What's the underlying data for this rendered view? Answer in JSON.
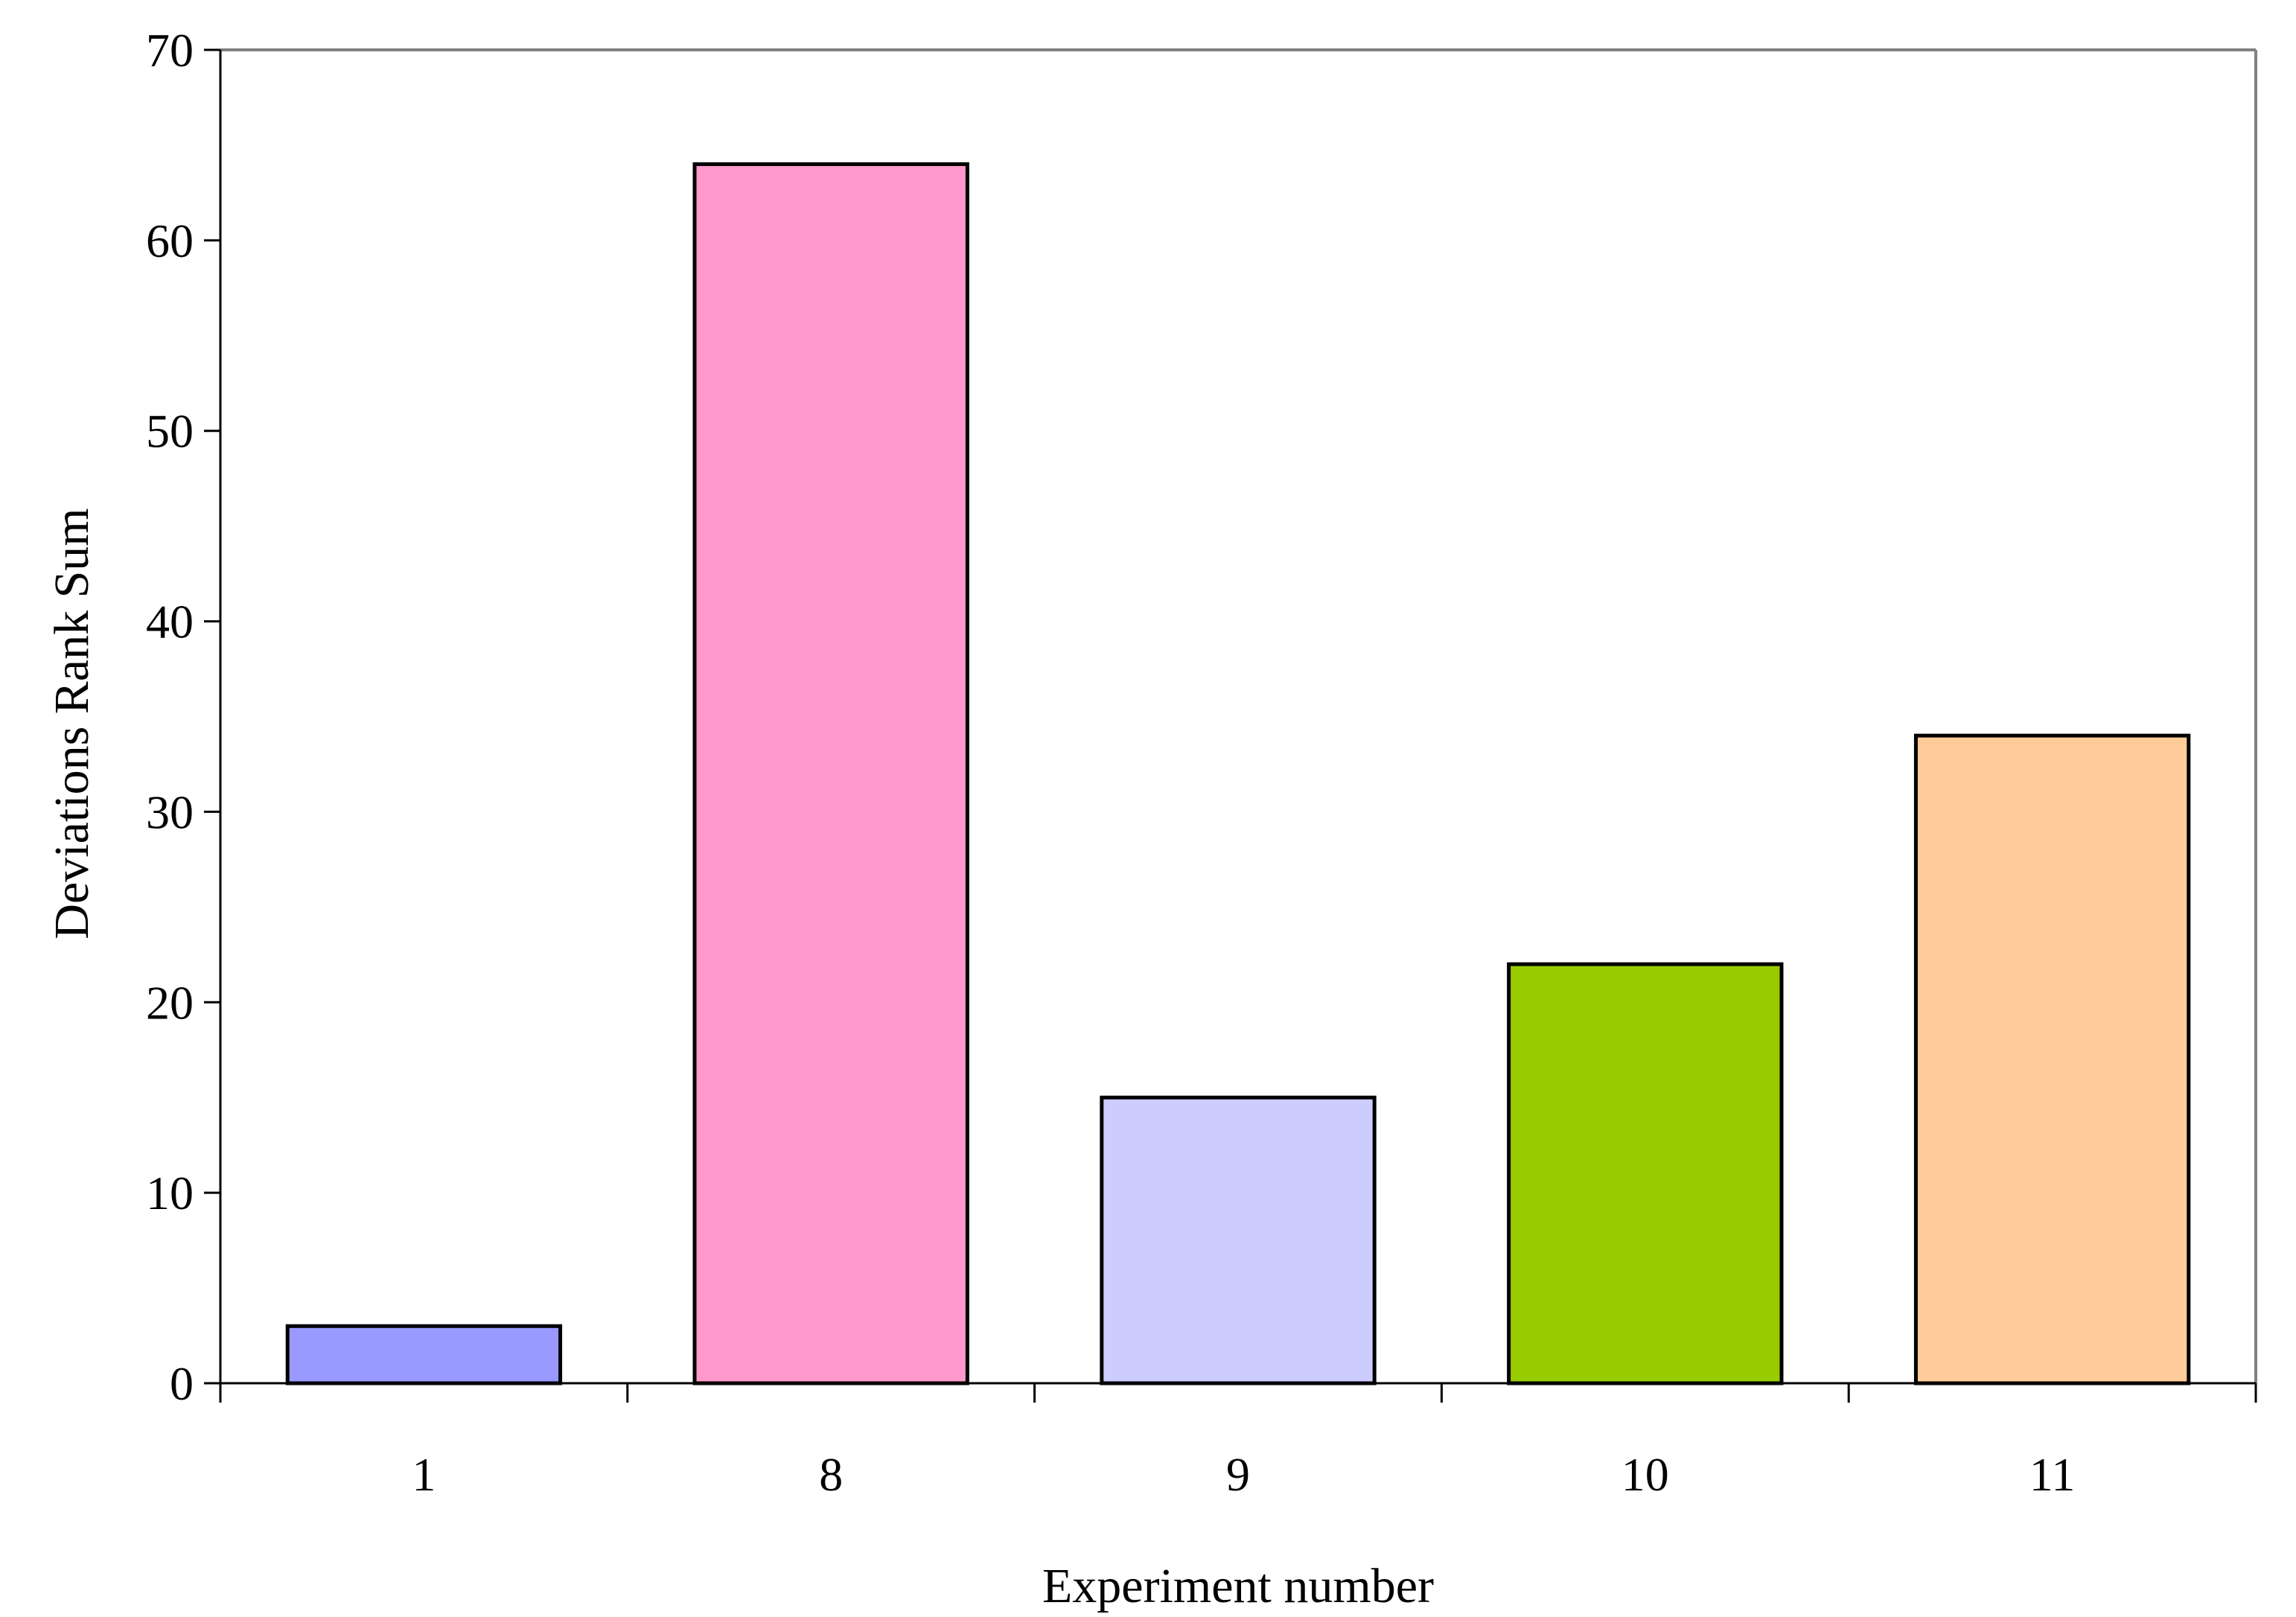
{
  "chart_data": {
    "type": "bar",
    "title": "",
    "xlabel": "Experiment number",
    "ylabel": "Deviations Rank Sum",
    "categories": [
      "1",
      "8",
      "9",
      "10",
      "11"
    ],
    "values": [
      3,
      64,
      15,
      22,
      34
    ],
    "colors": [
      "#9999ff",
      "#ff99cc",
      "#ccccff",
      "#99cc00",
      "#ffcc99"
    ],
    "ylim": [
      0,
      70
    ],
    "yticks": [
      0,
      10,
      20,
      30,
      40,
      50,
      60,
      70
    ],
    "grid": false,
    "legend": "none"
  }
}
